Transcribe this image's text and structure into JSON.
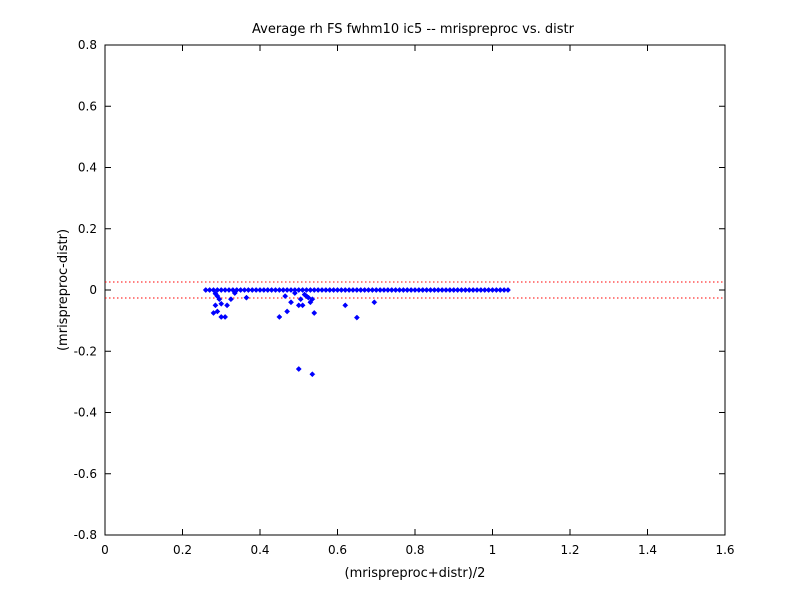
{
  "chart_data": {
    "type": "scatter",
    "title": "Average rh FS fwhm10 ic5 -- mrispreproc vs. distr",
    "xlabel": "(mrispreproc+distr)/2",
    "ylabel": "(mrispreproc-distr)",
    "xlim": [
      0,
      1.6
    ],
    "ylim": [
      -0.8,
      0.8
    ],
    "xticks": [
      0,
      0.2,
      0.4,
      0.6,
      0.8,
      1,
      1.2,
      1.4,
      1.6
    ],
    "xtick_labels": [
      "0",
      "0.2",
      "0.4",
      "0.6",
      "0.8",
      "1",
      "1.2",
      "1.4",
      "1.6"
    ],
    "yticks": [
      -0.8,
      -0.6,
      -0.4,
      -0.2,
      0,
      0.2,
      0.4,
      0.6,
      0.8
    ],
    "ytick_labels": [
      "-0.8",
      "-0.6",
      "-0.4",
      "-0.2",
      "0",
      "0.2",
      "0.4",
      "0.6",
      "0.8"
    ],
    "grid": false,
    "reference_lines": [
      {
        "y": 0.026,
        "style": "dotted",
        "color": "#ff0000"
      },
      {
        "y": -0.026,
        "style": "dotted",
        "color": "#ff0000"
      }
    ],
    "series": [
      {
        "color": "#0000ff",
        "marker": "diamond",
        "points": [
          [
            0.26,
            0
          ],
          [
            0.27,
            0
          ],
          [
            0.28,
            0
          ],
          [
            0.29,
            0
          ],
          [
            0.3,
            0
          ],
          [
            0.31,
            0
          ],
          [
            0.32,
            0
          ],
          [
            0.33,
            0
          ],
          [
            0.34,
            0
          ],
          [
            0.35,
            0
          ],
          [
            0.36,
            0
          ],
          [
            0.37,
            0
          ],
          [
            0.38,
            0
          ],
          [
            0.39,
            0
          ],
          [
            0.4,
            0
          ],
          [
            0.41,
            0
          ],
          [
            0.42,
            0
          ],
          [
            0.43,
            0
          ],
          [
            0.44,
            0
          ],
          [
            0.45,
            0
          ],
          [
            0.46,
            0
          ],
          [
            0.47,
            0
          ],
          [
            0.48,
            0
          ],
          [
            0.49,
            0
          ],
          [
            0.5,
            0
          ],
          [
            0.51,
            0
          ],
          [
            0.52,
            0
          ],
          [
            0.53,
            0
          ],
          [
            0.54,
            0
          ],
          [
            0.55,
            0
          ],
          [
            0.56,
            0
          ],
          [
            0.57,
            0
          ],
          [
            0.58,
            0
          ],
          [
            0.59,
            0
          ],
          [
            0.6,
            0
          ],
          [
            0.61,
            0
          ],
          [
            0.62,
            0
          ],
          [
            0.63,
            0
          ],
          [
            0.64,
            0
          ],
          [
            0.65,
            0
          ],
          [
            0.66,
            0
          ],
          [
            0.67,
            0
          ],
          [
            0.68,
            0
          ],
          [
            0.69,
            0
          ],
          [
            0.7,
            0
          ],
          [
            0.71,
            0
          ],
          [
            0.72,
            0
          ],
          [
            0.73,
            0
          ],
          [
            0.74,
            0
          ],
          [
            0.75,
            0
          ],
          [
            0.76,
            0
          ],
          [
            0.77,
            0
          ],
          [
            0.78,
            0
          ],
          [
            0.79,
            0
          ],
          [
            0.8,
            0
          ],
          [
            0.81,
            0
          ],
          [
            0.82,
            0
          ],
          [
            0.83,
            0
          ],
          [
            0.84,
            0
          ],
          [
            0.85,
            0
          ],
          [
            0.86,
            0
          ],
          [
            0.87,
            0
          ],
          [
            0.88,
            0
          ],
          [
            0.89,
            0
          ],
          [
            0.9,
            0
          ],
          [
            0.91,
            0
          ],
          [
            0.92,
            0
          ],
          [
            0.93,
            0
          ],
          [
            0.94,
            0
          ],
          [
            0.95,
            0
          ],
          [
            0.96,
            0
          ],
          [
            0.97,
            0
          ],
          [
            0.98,
            0
          ],
          [
            0.99,
            0
          ],
          [
            1.0,
            0
          ],
          [
            1.01,
            0
          ],
          [
            1.02,
            0
          ],
          [
            1.03,
            0
          ],
          [
            1.04,
            0
          ],
          [
            0.285,
            -0.012
          ],
          [
            0.29,
            -0.02
          ],
          [
            0.295,
            -0.03
          ],
          [
            0.3,
            -0.045
          ],
          [
            0.285,
            -0.05
          ],
          [
            0.28,
            -0.075
          ],
          [
            0.29,
            -0.07
          ],
          [
            0.3,
            -0.088
          ],
          [
            0.31,
            -0.088
          ],
          [
            0.315,
            -0.05
          ],
          [
            0.325,
            -0.03
          ],
          [
            0.335,
            -0.01
          ],
          [
            0.365,
            -0.025
          ],
          [
            0.45,
            -0.088
          ],
          [
            0.47,
            -0.07
          ],
          [
            0.48,
            -0.04
          ],
          [
            0.465,
            -0.02
          ],
          [
            0.49,
            -0.01
          ],
          [
            0.5,
            -0.05
          ],
          [
            0.505,
            -0.03
          ],
          [
            0.51,
            -0.05
          ],
          [
            0.515,
            -0.015
          ],
          [
            0.52,
            -0.02
          ],
          [
            0.525,
            -0.025
          ],
          [
            0.53,
            -0.04
          ],
          [
            0.535,
            -0.03
          ],
          [
            0.54,
            -0.075
          ],
          [
            0.62,
            -0.05
          ],
          [
            0.65,
            -0.09
          ],
          [
            0.695,
            -0.04
          ],
          [
            0.5,
            -0.258
          ],
          [
            0.535,
            -0.275
          ]
        ]
      }
    ]
  }
}
